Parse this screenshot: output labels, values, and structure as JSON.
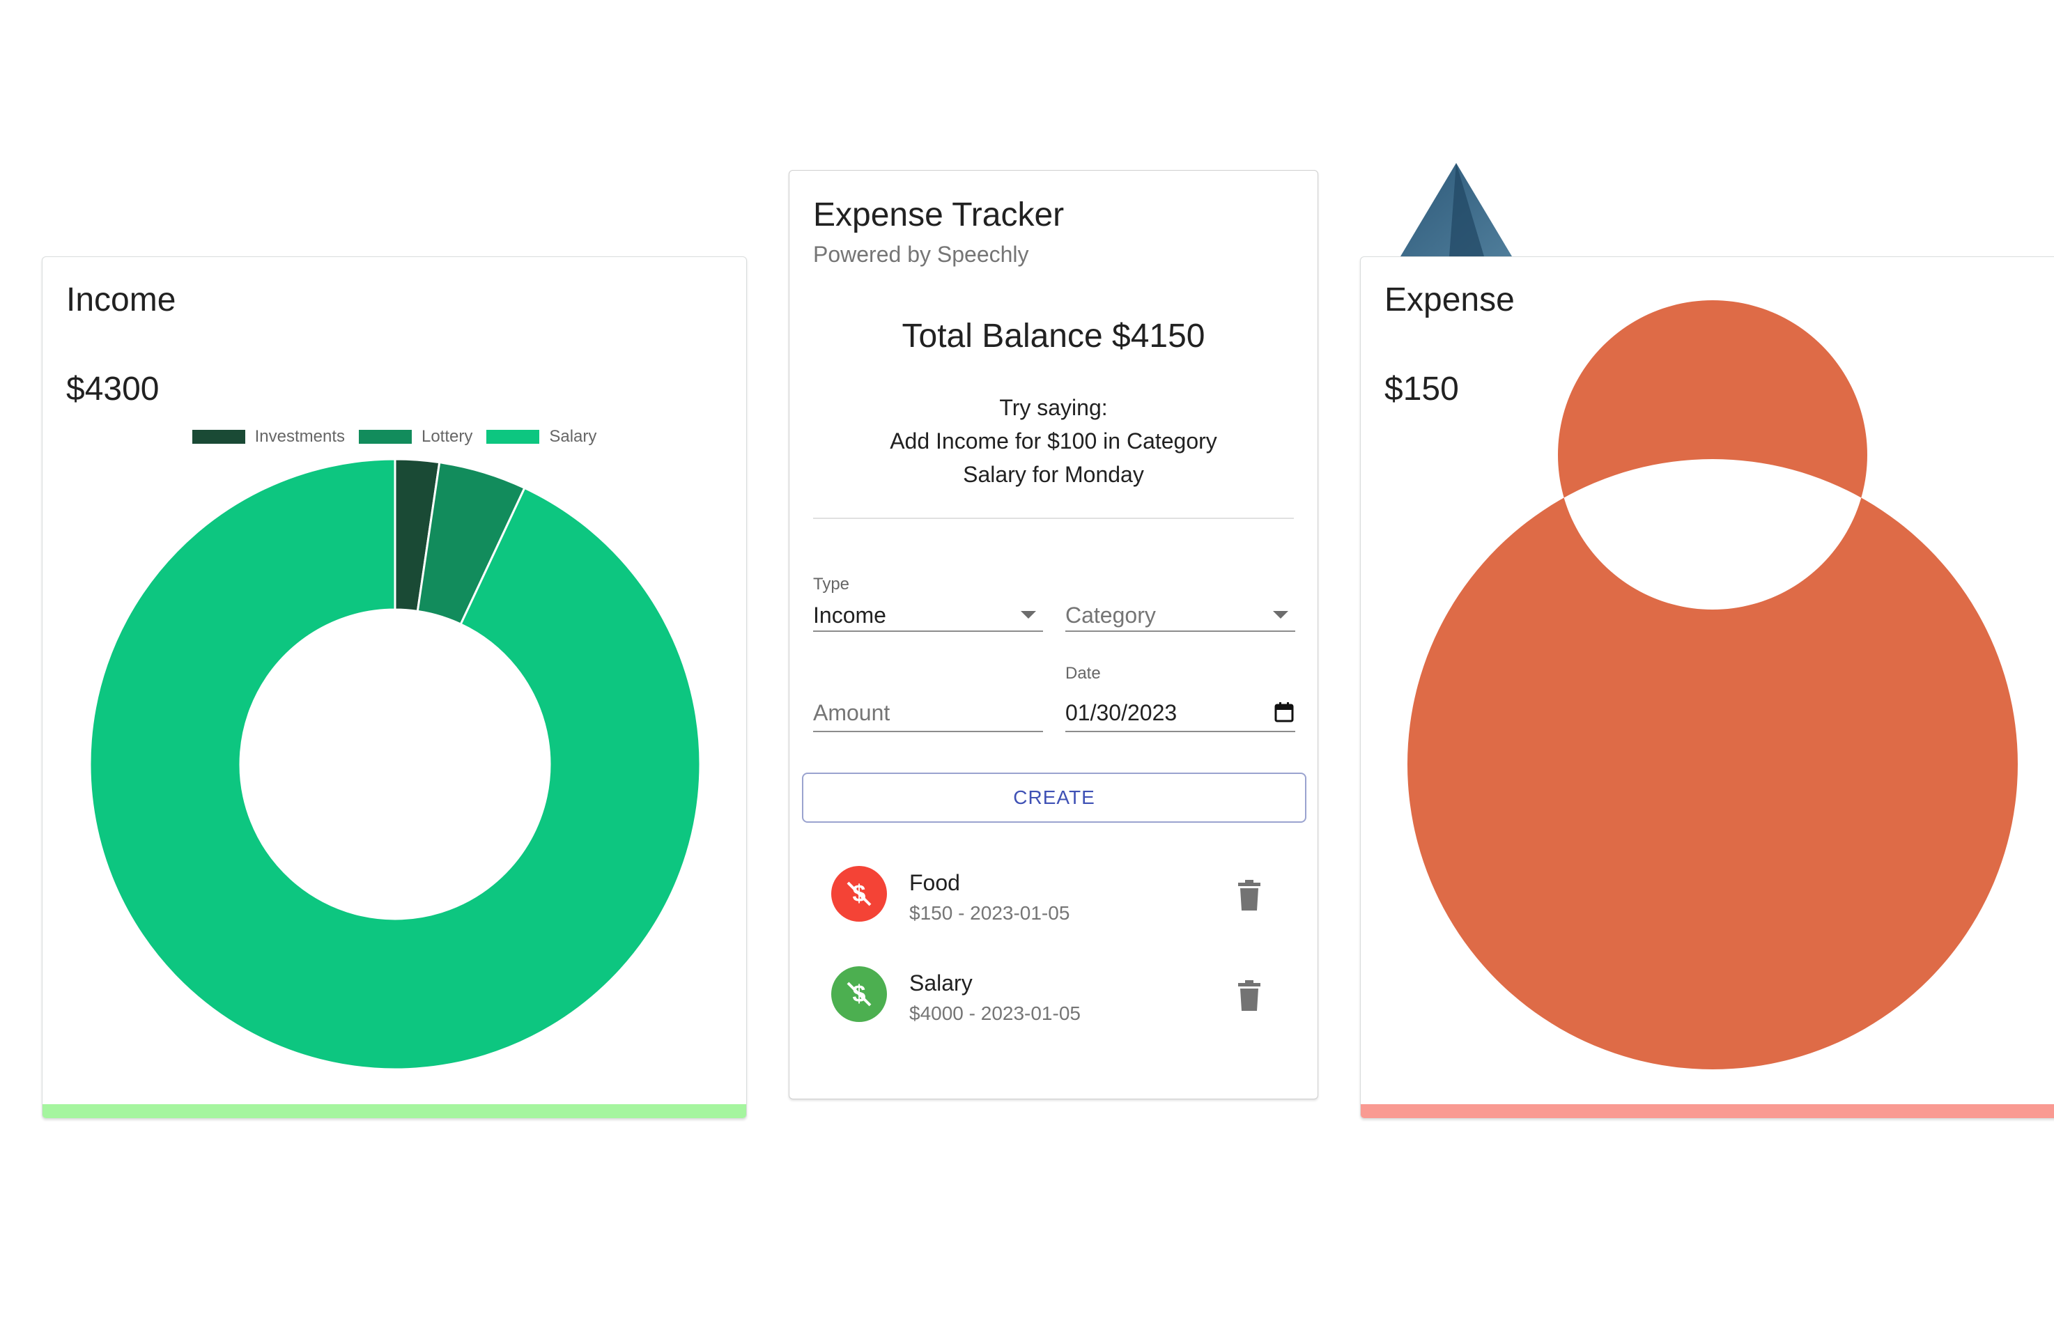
{
  "income": {
    "title": "Income",
    "amount": "$4300",
    "bar_color": "#a5f59f",
    "chart_data": {
      "type": "pie",
      "style": "doughnut",
      "categories": [
        "Investments",
        "Lottery",
        "Salary"
      ],
      "values": [
        100,
        200,
        4000
      ],
      "colors": [
        "#1a4a35",
        "#128c5c",
        "#0dc680"
      ],
      "legend": "top"
    }
  },
  "expense": {
    "title": "Expense",
    "amount": "$150",
    "bar_color": "#f99a92",
    "chart_data": {
      "type": "pie",
      "style": "doughnut",
      "categories": [
        "Food"
      ],
      "values": [
        150
      ],
      "colors": [
        "#de6b47"
      ],
      "legend": "top"
    }
  },
  "tracker": {
    "title": "Expense Tracker",
    "subtitle": "Powered by Speechly",
    "balance": "Total Balance $4150",
    "hint_lines": [
      "Try saying:",
      "Add Income for $100 in Category",
      "Salary for Monday"
    ],
    "form": {
      "type_label": "Type",
      "type_value": "Income",
      "category_placeholder": "Category",
      "amount_placeholder": "Amount",
      "date_label": "Date",
      "date_value": "01/30/2023",
      "create_label": "CREATE"
    },
    "transactions": [
      {
        "title": "Food",
        "subtitle": "$150 - 2023-01-05",
        "kind": "expense",
        "color": "#f44336",
        "icon": "money-off-icon"
      },
      {
        "title": "Salary",
        "subtitle": "$4000 - 2023-01-05",
        "kind": "income",
        "color": "#4caf50",
        "icon": "money-off-icon"
      }
    ]
  }
}
